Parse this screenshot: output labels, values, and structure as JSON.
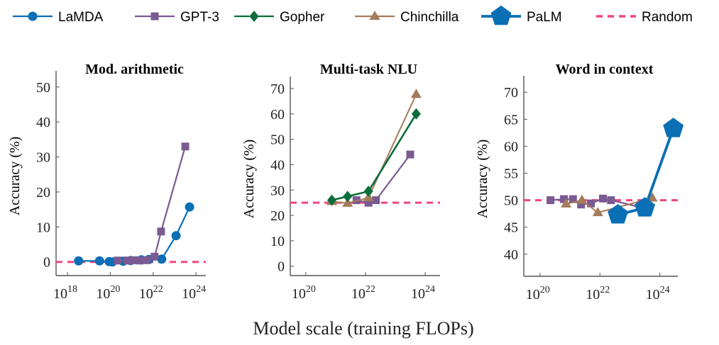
{
  "chart_data": {
    "type": "line",
    "xlabel": "Model scale (training FLOPs)",
    "xscale": "log",
    "legend": {
      "placement": "top",
      "entries": [
        {
          "name": "LaMDA",
          "color": "#0a6fb5",
          "marker": "circle"
        },
        {
          "name": "GPT-3",
          "color": "#7b5a93",
          "marker": "square"
        },
        {
          "name": "Gopher",
          "color": "#0b6e3a",
          "marker": "diamond"
        },
        {
          "name": "Chinchilla",
          "color": "#a57b5a",
          "marker": "triangle"
        },
        {
          "name": "PaLM",
          "color": "#0a6fb5",
          "marker": "pentagon"
        },
        {
          "name": "Random",
          "color": "#f0457f",
          "marker": "dashed"
        }
      ]
    },
    "panels": [
      {
        "title": "Mod. arithmetic",
        "ylabel": "Accuracy (%)",
        "xlim_log10": [
          17.47,
          24.46
        ],
        "ylim": [
          -3.9,
          53
        ],
        "xticks": [
          "18",
          "20",
          "22",
          "24"
        ],
        "yticks": [
          0,
          10,
          20,
          30,
          40,
          50
        ],
        "random": 0,
        "series": [
          {
            "name": "LaMDA",
            "x_log10": [
              18.52,
              19.5,
              19.95,
              20.1,
              20.6,
              20.95,
              21.45,
              21.8,
              22.4,
              23.07,
              23.7
            ],
            "y": [
              0.3,
              0.3,
              0.1,
              0.0,
              0.2,
              0.4,
              0.6,
              0.7,
              0.8,
              7.5,
              15.7
            ]
          },
          {
            "name": "GPT-3",
            "x_log10": [
              20.35,
              20.8,
              21.1,
              21.37,
              21.7,
              22.07,
              22.37,
              23.5
            ],
            "y": [
              0.4,
              0.4,
              0.5,
              0.4,
              0.5,
              1.5,
              8.7,
              33
            ]
          }
        ]
      },
      {
        "title": "Multi-task NLU",
        "ylabel": "Accuracy (%)",
        "xlim_log10": [
          19.48,
          24.5
        ],
        "ylim": [
          -3.7,
          72.5
        ],
        "xticks": [
          "20",
          "22",
          "24"
        ],
        "yticks": [
          0,
          10,
          20,
          30,
          40,
          50,
          60,
          70
        ],
        "random": 25,
        "series": [
          {
            "name": "GPT-3",
            "x_log10": [
              21.7,
              22.1,
              22.35,
              23.5
            ],
            "y": [
              26,
              25,
              26,
              44
            ]
          },
          {
            "name": "Chinchilla",
            "x_log10": [
              20.87,
              21.4,
              22.1,
              23.7
            ],
            "y": [
              25.5,
              24.8,
              27,
              67.7
            ]
          },
          {
            "name": "Gopher",
            "x_log10": [
              20.87,
              21.4,
              22.1,
              23.7
            ],
            "y": [
              26,
              27.5,
              29.5,
              60
            ]
          }
        ]
      },
      {
        "title": "Word in context",
        "ylabel": "Accuracy (%)",
        "xlim_log10": [
          19.46,
          24.6
        ],
        "ylim": [
          35.9,
          72
        ],
        "xticks": [
          "20",
          "22",
          "24"
        ],
        "yticks": [
          40,
          45,
          50,
          55,
          60,
          65,
          70
        ],
        "random": 50,
        "series": [
          {
            "name": "GPT-3",
            "x_log10": [
              20.35,
              20.8,
              21.1,
              21.37,
              21.7,
              22.1,
              22.37,
              23.5
            ],
            "y": [
              50,
              50.2,
              50.2,
              49.2,
              49.4,
              50.3,
              50,
              48.5
            ]
          },
          {
            "name": "Chinchilla",
            "x_log10": [
              20.87,
              21.4,
              21.93,
              23.75
            ],
            "y": [
              49.3,
              50,
              47.7,
              50.4
            ]
          },
          {
            "name": "PaLM",
            "x_log10": [
              22.6,
              23.5,
              24.45
            ],
            "y": [
              47.3,
              48.6,
              63.3
            ]
          }
        ]
      }
    ]
  }
}
